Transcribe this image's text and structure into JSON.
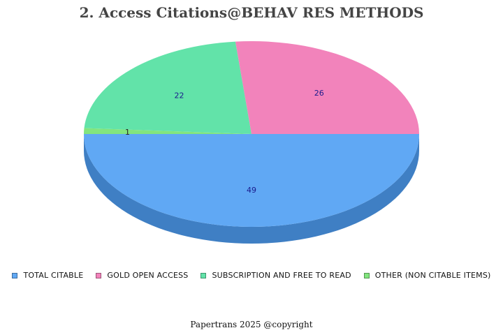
{
  "chart_data": {
    "type": "pie",
    "title": "2. Access Citations@BEHAV RES METHODS",
    "style": "3d",
    "start_angle_deg": 0,
    "slices": [
      {
        "label": "TOTAL CITABLE",
        "value": 49,
        "color": "#60a8f4",
        "side_color": "#3f7fc4"
      },
      {
        "label": "OTHER (NON CITABLE ITEMS)",
        "value": 1,
        "color": "#82e57e",
        "side_color": "#4caf50"
      },
      {
        "label": "SUBSCRIPTION AND FREE TO READ",
        "value": 22,
        "color": "#62e3a9",
        "side_color": "#078a4e"
      },
      {
        "label": "GOLD OPEN ACCESS",
        "value": 26,
        "color": "#f283bb",
        "side_color": "#9b235d"
      }
    ],
    "legend_order": [
      {
        "label": "TOTAL CITABLE",
        "color": "#60a8f4"
      },
      {
        "label": "GOLD OPEN ACCESS",
        "color": "#f283bb"
      },
      {
        "label": "SUBSCRIPTION AND FREE TO READ",
        "color": "#62e3a9"
      },
      {
        "label": "OTHER (NON CITABLE ITEMS)",
        "color": "#82e57e"
      }
    ],
    "legend_position": "bottom",
    "data_label_color": "#1a1a8c",
    "small_label_color": "#222222"
  },
  "footer": "Papertrans 2025 @copyright"
}
